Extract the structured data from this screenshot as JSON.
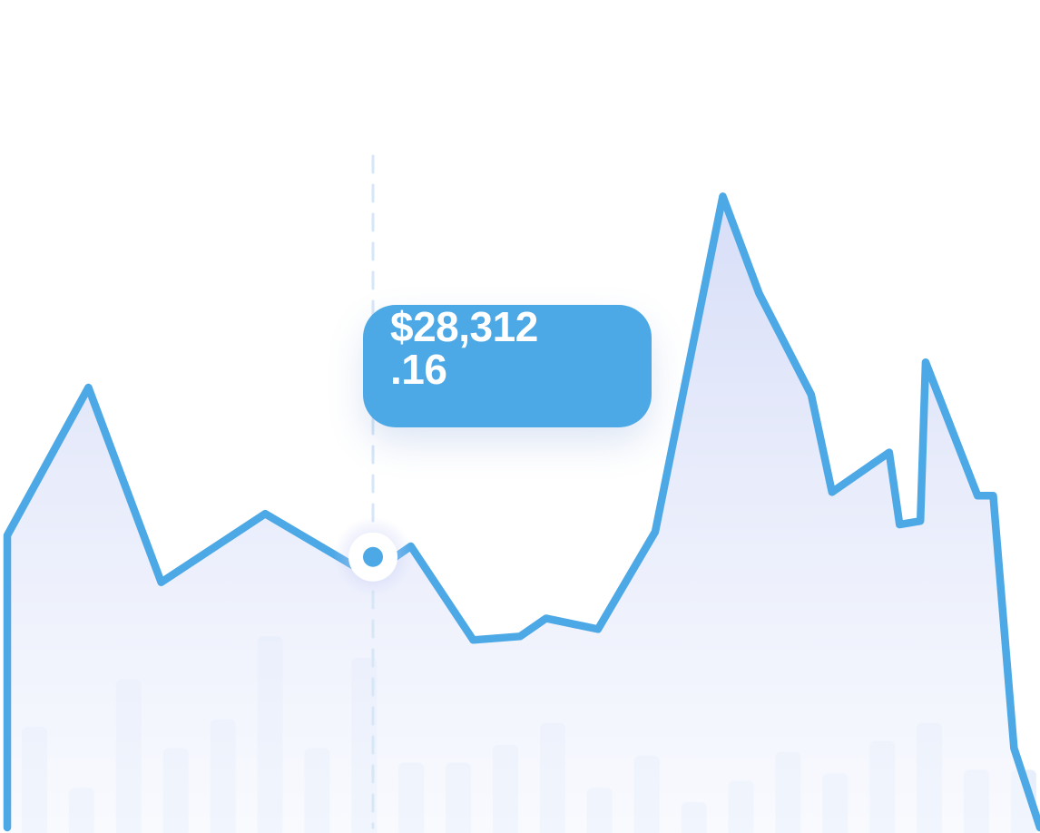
{
  "chart_data": {
    "type": "line",
    "title": "",
    "xlabel": "",
    "ylabel": "",
    "ylim": [
      0,
      100
    ],
    "grid": false,
    "legend": "none",
    "line": {
      "x": [
        0,
        8.5,
        15.5,
        25.5,
        35.5,
        39.5,
        45.5,
        50,
        52.5,
        57.5,
        63,
        69.5,
        73,
        78,
        80,
        85.5,
        86.5,
        88.5,
        89,
        94,
        95.5,
        97.5,
        100
      ],
      "values": [
        40.5,
        61,
        34,
        43.5,
        35,
        39,
        26,
        26.5,
        29,
        27.5,
        41,
        87.5,
        74,
        60,
        46.5,
        52,
        42,
        42.5,
        64.5,
        46,
        46,
        11,
        0
      ]
    },
    "bars": {
      "values": [
        14,
        5.5,
        20.5,
        11,
        15,
        26.5,
        11,
        23.5,
        9,
        9,
        11.5,
        14.5,
        5.5,
        10,
        3.5,
        6.5,
        10.5,
        7.5,
        12,
        14.5,
        8,
        8
      ]
    },
    "highlight": {
      "index": 4,
      "label_line1": "$28,312",
      "label_line2": ".16"
    }
  },
  "colors": {
    "line": "#4da8e6",
    "area_top": "#d5dcf7",
    "area_bottom": "#f6f8fe",
    "bar": "#e2ecfa",
    "tooltip_bg": "#4da8e6",
    "tooltip_text": "#ffffff",
    "guide": "#d6e7f7",
    "marker_fill": "#ffffff",
    "marker_dot": "#4da8e6"
  }
}
